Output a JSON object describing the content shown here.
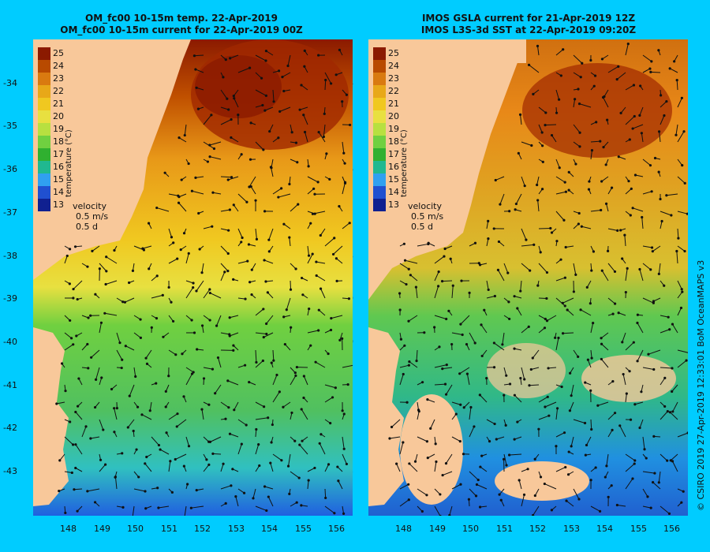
{
  "panels": [
    {
      "title_line1": "OM_fc00 10-15m temp. 22-Apr-2019",
      "title_line2": "OM_fc00 10-15m current for 22-Apr-2019 00Z"
    },
    {
      "title_line1": "IMOS GSLA current for 21-Apr-2019 12Z",
      "title_line2": "IMOS L3S-3d SST at 22-Apr-2019 09:20Z"
    }
  ],
  "colorbar": {
    "title": "temperature (°C)",
    "levels": [
      "25",
      "24",
      "23",
      "22",
      "21",
      "20",
      "19",
      "18",
      "17",
      "16",
      "15",
      "14",
      "13"
    ],
    "colors": [
      "#8b1a00",
      "#b84a00",
      "#d97a10",
      "#e8a818",
      "#f0c820",
      "#e8e040",
      "#b8e040",
      "#70d040",
      "#30b030",
      "#20b890",
      "#30a0f0",
      "#2050d0",
      "#102090"
    ]
  },
  "velocity_key": {
    "label": "velocity",
    "speed": "0.5 m/s",
    "duration": "0.5 d"
  },
  "y_ticks": [
    "-34",
    "-35",
    "-36",
    "-37",
    "-38",
    "-39",
    "-40",
    "-41",
    "-42",
    "-43"
  ],
  "x_ticks": [
    "148",
    "149",
    "150",
    "151",
    "152",
    "153",
    "154",
    "155",
    "156"
  ],
  "credit": "© CSIRO 2019   27-Apr-2019 12:33:01 BoM OceanMAPS v3",
  "colors": {
    "background": "#00ccff",
    "land": "#f8c89a"
  }
}
